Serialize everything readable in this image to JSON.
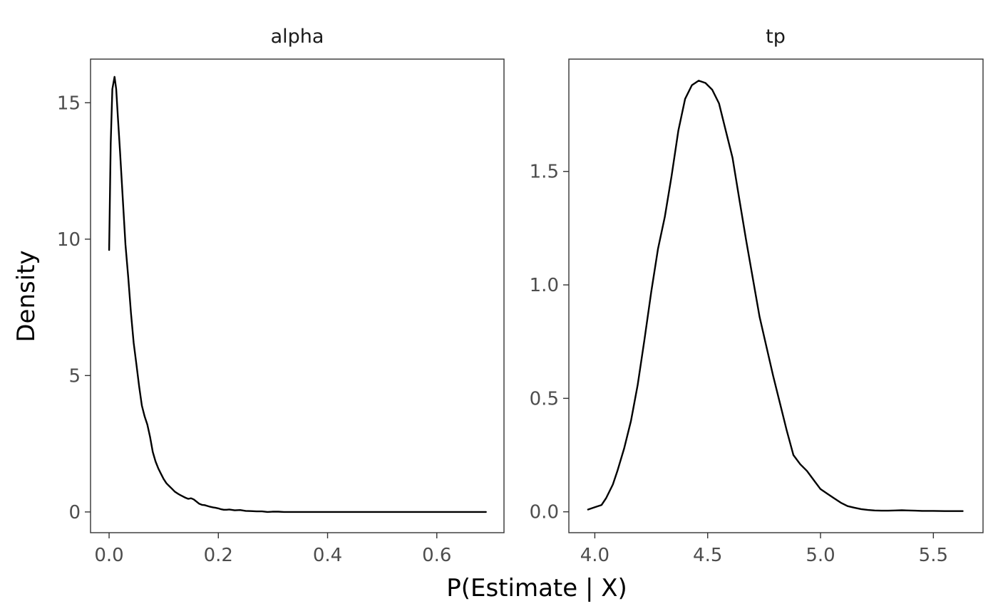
{
  "chart_data": [
    {
      "type": "line",
      "title": "alpha",
      "xlabel": "P(Estimate | X)",
      "ylabel": "Density",
      "xlim": [
        -0.034,
        0.723
      ],
      "ylim": [
        -0.76,
        16.6
      ],
      "x_ticks": [
        0.0,
        0.2,
        0.4,
        0.6
      ],
      "x_tick_labels": [
        "0.0",
        "0.2",
        "0.4",
        "0.6"
      ],
      "y_ticks": [
        0,
        5,
        10,
        15
      ],
      "y_tick_labels": [
        "0",
        "5",
        "10",
        "15"
      ],
      "grid": false,
      "series": [
        {
          "x": [
            0.0,
            0.003,
            0.006,
            0.01,
            0.013,
            0.016,
            0.02,
            0.025,
            0.03,
            0.035,
            0.04,
            0.045,
            0.05,
            0.055,
            0.06,
            0.065,
            0.07,
            0.075,
            0.08,
            0.085,
            0.09,
            0.095,
            0.1,
            0.105,
            0.11,
            0.115,
            0.12,
            0.125,
            0.13,
            0.135,
            0.14,
            0.145,
            0.15,
            0.155,
            0.16,
            0.165,
            0.17,
            0.175,
            0.18,
            0.185,
            0.19,
            0.195,
            0.2,
            0.205,
            0.21,
            0.215,
            0.22,
            0.23,
            0.24,
            0.25,
            0.26,
            0.27,
            0.28,
            0.29,
            0.3,
            0.31,
            0.32,
            0.34,
            0.36,
            0.38,
            0.4,
            0.42,
            0.44,
            0.46,
            0.48,
            0.5,
            0.55,
            0.6,
            0.65,
            0.69
          ],
          "y": [
            9.6,
            13.5,
            15.5,
            15.95,
            15.5,
            14.5,
            13.2,
            11.5,
            9.8,
            8.6,
            7.3,
            6.2,
            5.4,
            4.6,
            3.9,
            3.5,
            3.2,
            2.75,
            2.2,
            1.85,
            1.6,
            1.4,
            1.2,
            1.05,
            0.95,
            0.85,
            0.75,
            0.68,
            0.62,
            0.57,
            0.52,
            0.48,
            0.5,
            0.46,
            0.38,
            0.3,
            0.26,
            0.25,
            0.22,
            0.19,
            0.17,
            0.15,
            0.13,
            0.1,
            0.08,
            0.08,
            0.09,
            0.06,
            0.07,
            0.04,
            0.03,
            0.02,
            0.02,
            0.0,
            0.01,
            0.01,
            0.0,
            0.0,
            0.0,
            0.0,
            0.0,
            0.0,
            0.0,
            0.0,
            0.0,
            0.0,
            0.0,
            0.0,
            0.0,
            0.0
          ]
        }
      ]
    },
    {
      "type": "line",
      "title": "tp",
      "xlabel": "P(Estimate | X)",
      "ylabel": "Density",
      "xlim": [
        3.885,
        5.72
      ],
      "ylim": [
        -0.092,
        1.995
      ],
      "x_ticks": [
        4.0,
        4.5,
        5.0,
        5.5
      ],
      "x_tick_labels": [
        "4.0",
        "4.5",
        "5.0",
        "5.5"
      ],
      "y_ticks": [
        0.0,
        0.5,
        1.0,
        1.5
      ],
      "y_tick_labels": [
        "0.0",
        "0.5",
        "1.0",
        "1.5"
      ],
      "grid": false,
      "series": [
        {
          "x": [
            3.97,
            4.0,
            4.03,
            4.05,
            4.08,
            4.1,
            4.13,
            4.16,
            4.19,
            4.22,
            4.25,
            4.28,
            4.31,
            4.34,
            4.37,
            4.4,
            4.43,
            4.46,
            4.49,
            4.52,
            4.55,
            4.58,
            4.61,
            4.64,
            4.67,
            4.7,
            4.73,
            4.76,
            4.79,
            4.82,
            4.85,
            4.88,
            4.91,
            4.94,
            4.97,
            5.0,
            5.03,
            5.06,
            5.09,
            5.12,
            5.15,
            5.18,
            5.21,
            5.24,
            5.27,
            5.3,
            5.33,
            5.36,
            5.39,
            5.42,
            5.45,
            5.5,
            5.55,
            5.63
          ],
          "y": [
            0.01,
            0.02,
            0.03,
            0.06,
            0.12,
            0.18,
            0.28,
            0.4,
            0.56,
            0.76,
            0.97,
            1.16,
            1.3,
            1.48,
            1.68,
            1.82,
            1.88,
            1.9,
            1.89,
            1.86,
            1.8,
            1.68,
            1.56,
            1.38,
            1.2,
            1.03,
            0.86,
            0.73,
            0.6,
            0.48,
            0.36,
            0.25,
            0.21,
            0.18,
            0.14,
            0.1,
            0.08,
            0.06,
            0.04,
            0.025,
            0.018,
            0.012,
            0.008,
            0.006,
            0.005,
            0.005,
            0.006,
            0.007,
            0.006,
            0.005,
            0.004,
            0.004,
            0.003,
            0.003
          ]
        }
      ]
    }
  ]
}
